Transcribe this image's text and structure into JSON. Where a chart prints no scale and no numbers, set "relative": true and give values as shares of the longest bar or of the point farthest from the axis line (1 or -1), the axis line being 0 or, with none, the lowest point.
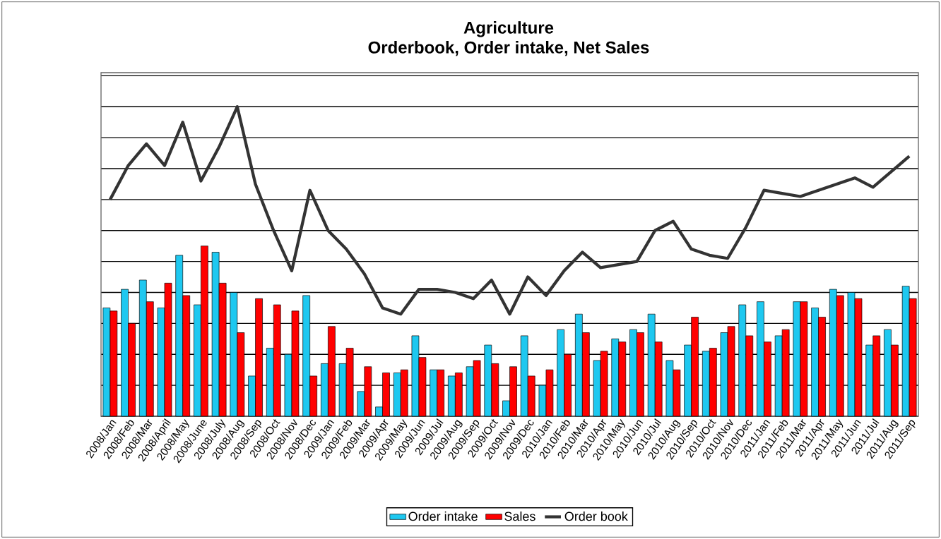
{
  "chart_data": {
    "type": "bar",
    "title": "Agriculture\nOrderbook, Order intake, Net Sales",
    "relative": true,
    "grid": "y",
    "legend": "bottom",
    "marker": "none",
    "categories": [
      "2008/Jan",
      "2008/Feb",
      "2008/Mar",
      "2008/April",
      "2008/May",
      "2008/June",
      "2008/July",
      "2008/Aug",
      "2008/Sep",
      "2008/Oct",
      "2008/Nov",
      "2008/Dec",
      "2009/Jan",
      "2009/Feb",
      "2009/Mar",
      "2009/Apr",
      "2009/May",
      "2009/Jun",
      "2009/Jul",
      "2009/Aug",
      "2009/Sep",
      "2009/Oct",
      "2009/Nov",
      "2009/Dec",
      "2010/Jan",
      "2010/Feb",
      "2010/Mar",
      "2010/Apr",
      "2010/May",
      "2010/Jun",
      "2010/Jul",
      "2010/Aug",
      "2010/Sep",
      "2010/Oct",
      "2010/Nov",
      "2010/Dec",
      "2011/Jan",
      "2011/Feb",
      "2011/Mar",
      "2011/Apr",
      "2011/May",
      "2011/Jun",
      "2011/Jul",
      "2011/Aug",
      "2011/Sep"
    ],
    "series": [
      {
        "name": "Order intake",
        "color": "#1ec8f0",
        "values": [
          0.35,
          0.41,
          0.44,
          0.35,
          0.52,
          0.36,
          0.53,
          0.4,
          0.13,
          0.22,
          0.2,
          0.39,
          0.17,
          0.17,
          0.08,
          0.03,
          0.14,
          0.26,
          0.15,
          0.13,
          0.16,
          0.23,
          0.05,
          0.26,
          0.1,
          0.28,
          0.33,
          0.18,
          0.25,
          0.28,
          0.33,
          0.18,
          0.23,
          0.21,
          0.27,
          0.36,
          0.37,
          0.26,
          0.37,
          0.35,
          0.41,
          0.4,
          0.23,
          0.28,
          0.42
        ]
      },
      {
        "name": "Sales",
        "color": "#ff0000",
        "values": [
          0.34,
          0.3,
          0.37,
          0.43,
          0.39,
          0.55,
          0.43,
          0.27,
          0.38,
          0.36,
          0.34,
          0.13,
          0.29,
          0.22,
          0.16,
          0.14,
          0.15,
          0.19,
          0.15,
          0.14,
          0.18,
          0.17,
          0.16,
          0.13,
          0.15,
          0.2,
          0.27,
          0.21,
          0.24,
          0.27,
          0.24,
          0.15,
          0.32,
          0.22,
          0.29,
          0.26,
          0.24,
          0.28,
          0.37,
          0.32,
          0.39,
          0.38,
          0.26,
          0.23,
          0.38
        ]
      },
      {
        "name": "Order book",
        "type": "line",
        "color": "#333333",
        "values": [
          0.7,
          0.81,
          0.88,
          0.81,
          0.95,
          0.76,
          0.87,
          1.0,
          0.75,
          0.6,
          0.47,
          0.73,
          0.6,
          0.54,
          0.46,
          0.35,
          0.33,
          0.41,
          0.41,
          0.4,
          0.38,
          0.44,
          0.33,
          0.45,
          0.39,
          0.47,
          0.53,
          0.48,
          0.49,
          0.5,
          0.6,
          0.63,
          0.54,
          0.52,
          0.51,
          0.61,
          0.73,
          0.72,
          0.71,
          0.73,
          0.75,
          0.77,
          0.74,
          0.79,
          0.84
        ]
      }
    ]
  }
}
